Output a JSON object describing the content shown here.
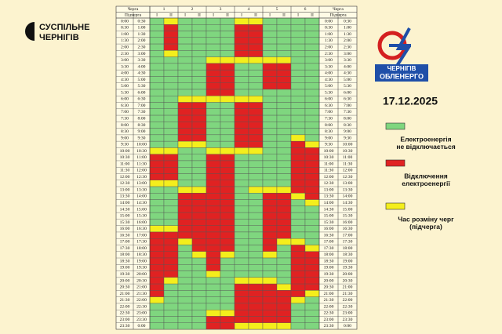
{
  "brand": {
    "name": "СУСПІЛЬНЕ",
    "region": "ЧЕРНІГІВ"
  },
  "logo": {
    "line1": "ЧЕРНІГІВ",
    "line2": "ОБЛЕНЕРГО"
  },
  "date": "17.12.2025",
  "table": {
    "queue_header": "Черга",
    "subqueue_header": "Підчерга",
    "queues": [
      {
        "name": "1",
        "subqueues": [
          {
            "name": "I",
            "status": [
              0,
              0,
              0,
              0,
              0,
              0,
              0,
              0,
              0,
              0,
              0,
              0,
              0,
              0,
              0,
              0,
              0,
              0,
              0,
              0,
              2,
              1,
              1,
              1,
              1,
              2,
              0,
              0,
              0,
              0,
              0,
              0,
              2,
              1,
              1,
              1,
              1,
              1,
              1,
              1,
              1,
              1,
              1,
              2,
              0,
              0,
              0,
              0
            ]
          },
          {
            "name": "II",
            "status": [
              2,
              1,
              1,
              1,
              1,
              2,
              0,
              0,
              0,
              0,
              0,
              0,
              0,
              0,
              0,
              0,
              0,
              0,
              0,
              0,
              2,
              1,
              1,
              1,
              1,
              2,
              0,
              0,
              0,
              0,
              0,
              0,
              2,
              1,
              1,
              1,
              1,
              1,
              1,
              1,
              2,
              0,
              0,
              0,
              0,
              0,
              0,
              0
            ]
          }
        ]
      },
      {
        "name": "2",
        "subqueues": [
          {
            "name": "I",
            "status": [
              0,
              0,
              0,
              0,
              0,
              0,
              0,
              0,
              0,
              0,
              0,
              0,
              2,
              1,
              1,
              1,
              1,
              1,
              1,
              2,
              0,
              0,
              0,
              0,
              0,
              0,
              2,
              1,
              1,
              1,
              1,
              1,
              1,
              1,
              2,
              0,
              0,
              0,
              0,
              0,
              0,
              0,
              0,
              0,
              0,
              0,
              0,
              0
            ]
          },
          {
            "name": "II",
            "status": [
              0,
              0,
              0,
              0,
              0,
              0,
              0,
              0,
              0,
              0,
              0,
              0,
              2,
              1,
              1,
              1,
              1,
              1,
              1,
              2,
              0,
              0,
              0,
              0,
              0,
              0,
              2,
              1,
              1,
              1,
              1,
              1,
              1,
              1,
              1,
              1,
              2,
              0,
              0,
              0,
              0,
              0,
              0,
              0,
              0,
              0,
              0,
              0
            ]
          }
        ]
      },
      {
        "name": "3",
        "subqueues": [
          {
            "name": "I",
            "status": [
              0,
              0,
              0,
              0,
              0,
              0,
              2,
              1,
              1,
              1,
              1,
              1,
              2,
              0,
              0,
              0,
              0,
              0,
              0,
              0,
              2,
              1,
              1,
              1,
              1,
              1,
              1,
              1,
              1,
              1,
              1,
              1,
              1,
              1,
              1,
              1,
              1,
              1,
              1,
              2,
              0,
              0,
              0,
              0,
              0,
              2,
              1,
              1
            ]
          },
          {
            "name": "II",
            "status": [
              0,
              0,
              0,
              0,
              0,
              0,
              2,
              1,
              1,
              1,
              1,
              1,
              2,
              0,
              0,
              0,
              0,
              0,
              0,
              0,
              2,
              1,
              1,
              1,
              1,
              1,
              1,
              1,
              1,
              1,
              1,
              1,
              1,
              1,
              1,
              1,
              2,
              0,
              0,
              0,
              0,
              0,
              0,
              0,
              0,
              2,
              1,
              1
            ]
          }
        ]
      },
      {
        "name": "4",
        "subqueues": [
          {
            "name": "I",
            "status": [
              2,
              1,
              1,
              1,
              1,
              1,
              2,
              0,
              0,
              0,
              0,
              0,
              2,
              1,
              1,
              1,
              1,
              1,
              1,
              1,
              2,
              0,
              0,
              0,
              0,
              0,
              0,
              0,
              0,
              0,
              0,
              0,
              0,
              0,
              0,
              0,
              0,
              0,
              0,
              0,
              2,
              1,
              1,
              1,
              1,
              1,
              1,
              2
            ]
          },
          {
            "name": "II",
            "status": [
              2,
              1,
              1,
              1,
              1,
              1,
              2,
              0,
              0,
              0,
              0,
              0,
              2,
              1,
              1,
              1,
              1,
              1,
              1,
              1,
              2,
              0,
              0,
              0,
              0,
              0,
              2,
              0,
              0,
              0,
              0,
              0,
              0,
              0,
              0,
              0,
              0,
              0,
              0,
              0,
              2,
              1,
              1,
              1,
              1,
              1,
              1,
              2
            ]
          }
        ]
      },
      {
        "name": "5",
        "subqueues": [
          {
            "name": "I",
            "status": [
              0,
              0,
              0,
              0,
              0,
              0,
              2,
              1,
              1,
              1,
              1,
              0,
              0,
              0,
              0,
              0,
              0,
              0,
              0,
              0,
              0,
              0,
              0,
              0,
              0,
              0,
              2,
              1,
              1,
              1,
              1,
              1,
              1,
              1,
              1,
              1,
              2,
              0,
              0,
              0,
              2,
              1,
              1,
              1,
              1,
              1,
              1,
              2
            ]
          },
          {
            "name": "II",
            "status": [
              0,
              0,
              0,
              0,
              0,
              0,
              2,
              1,
              1,
              1,
              1,
              0,
              0,
              0,
              0,
              0,
              0,
              0,
              0,
              0,
              0,
              0,
              0,
              0,
              0,
              0,
              2,
              1,
              1,
              1,
              1,
              1,
              1,
              1,
              2,
              0,
              0,
              0,
              0,
              0,
              0,
              2,
              1,
              1,
              1,
              1,
              1,
              2
            ]
          }
        ]
      },
      {
        "name": "6",
        "subqueues": [
          {
            "name": "I",
            "status": [
              0,
              0,
              0,
              0,
              0,
              0,
              0,
              0,
              0,
              0,
              0,
              0,
              0,
              0,
              0,
              0,
              0,
              0,
              2,
              1,
              1,
              1,
              1,
              1,
              1,
              1,
              1,
              2,
              0,
              0,
              0,
              0,
              0,
              0,
              2,
              1,
              1,
              1,
              1,
              1,
              1,
              1,
              1,
              2,
              0,
              0,
              0,
              0
            ]
          },
          {
            "name": "II",
            "status": [
              0,
              0,
              0,
              0,
              0,
              0,
              0,
              0,
              0,
              0,
              0,
              0,
              0,
              0,
              0,
              0,
              0,
              0,
              0,
              2,
              1,
              1,
              1,
              1,
              1,
              1,
              1,
              1,
              2,
              0,
              0,
              0,
              0,
              0,
              0,
              2,
              1,
              1,
              1,
              1,
              1,
              1,
              2,
              0,
              0,
              0,
              0,
              0
            ]
          }
        ]
      }
    ],
    "rows": [
      {
        "from": "0:00",
        "to": "0:30"
      },
      {
        "from": "0:30",
        "to": "1:00"
      },
      {
        "from": "1:00",
        "to": "1:30"
      },
      {
        "from": "1:30",
        "to": "2:00"
      },
      {
        "from": "2:00",
        "to": "2:30"
      },
      {
        "from": "2:30",
        "to": "3:00"
      },
      {
        "from": "3:00",
        "to": "3:30"
      },
      {
        "from": "3:30",
        "to": "4:00"
      },
      {
        "from": "4:00",
        "to": "4:30"
      },
      {
        "from": "4:30",
        "to": "5:00"
      },
      {
        "from": "5:00",
        "to": "5:30"
      },
      {
        "from": "5:30",
        "to": "6:00"
      },
      {
        "from": "6:00",
        "to": "6:30"
      },
      {
        "from": "6:30",
        "to": "7:00"
      },
      {
        "from": "7:00",
        "to": "7:30"
      },
      {
        "from": "7:30",
        "to": "8:00"
      },
      {
        "from": "8:00",
        "to": "8:30"
      },
      {
        "from": "8:30",
        "to": "9:00"
      },
      {
        "from": "9:00",
        "to": "9:30"
      },
      {
        "from": "9:30",
        "to": "10:00"
      },
      {
        "from": "10:00",
        "to": "10:30"
      },
      {
        "from": "10:30",
        "to": "11:00"
      },
      {
        "from": "11:00",
        "to": "11:30"
      },
      {
        "from": "11:30",
        "to": "12:00"
      },
      {
        "from": "12:00",
        "to": "12:30"
      },
      {
        "from": "12:30",
        "to": "13:00"
      },
      {
        "from": "13:00",
        "to": "13:30"
      },
      {
        "from": "13:30",
        "to": "14:00"
      },
      {
        "from": "14:00",
        "to": "14:30"
      },
      {
        "from": "14:30",
        "to": "15:00"
      },
      {
        "from": "15:00",
        "to": "15:30"
      },
      {
        "from": "15:30",
        "to": "16:00"
      },
      {
        "from": "16:00",
        "to": "16:30"
      },
      {
        "from": "16:30",
        "to": "17:00"
      },
      {
        "from": "17:00",
        "to": "17:30"
      },
      {
        "from": "17:30",
        "to": "18:00"
      },
      {
        "from": "18:00",
        "to": "18:30"
      },
      {
        "from": "18:30",
        "to": "19:00"
      },
      {
        "from": "19:00",
        "to": "19:30"
      },
      {
        "from": "19:30",
        "to": "20:00"
      },
      {
        "from": "20:00",
        "to": "20:30"
      },
      {
        "from": "20:30",
        "to": "21:00"
      },
      {
        "from": "21:00",
        "to": "21:30"
      },
      {
        "from": "21:30",
        "to": "22:00"
      },
      {
        "from": "22:00",
        "to": "22:30"
      },
      {
        "from": "22:30",
        "to": "23:00"
      },
      {
        "from": "23:00",
        "to": "23:30"
      },
      {
        "from": "23:30",
        "to": "0:00"
      }
    ]
  },
  "legend": [
    {
      "color": "#7fd67f",
      "lines": [
        "Електроенергія",
        "не відключається"
      ]
    },
    {
      "color": "#e02222",
      "lines": [
        "Відключення",
        "електроенергії"
      ]
    },
    {
      "color": "#f4ee1c",
      "lines": [
        "Час розміну черг",
        "(підчерга)"
      ]
    }
  ]
}
